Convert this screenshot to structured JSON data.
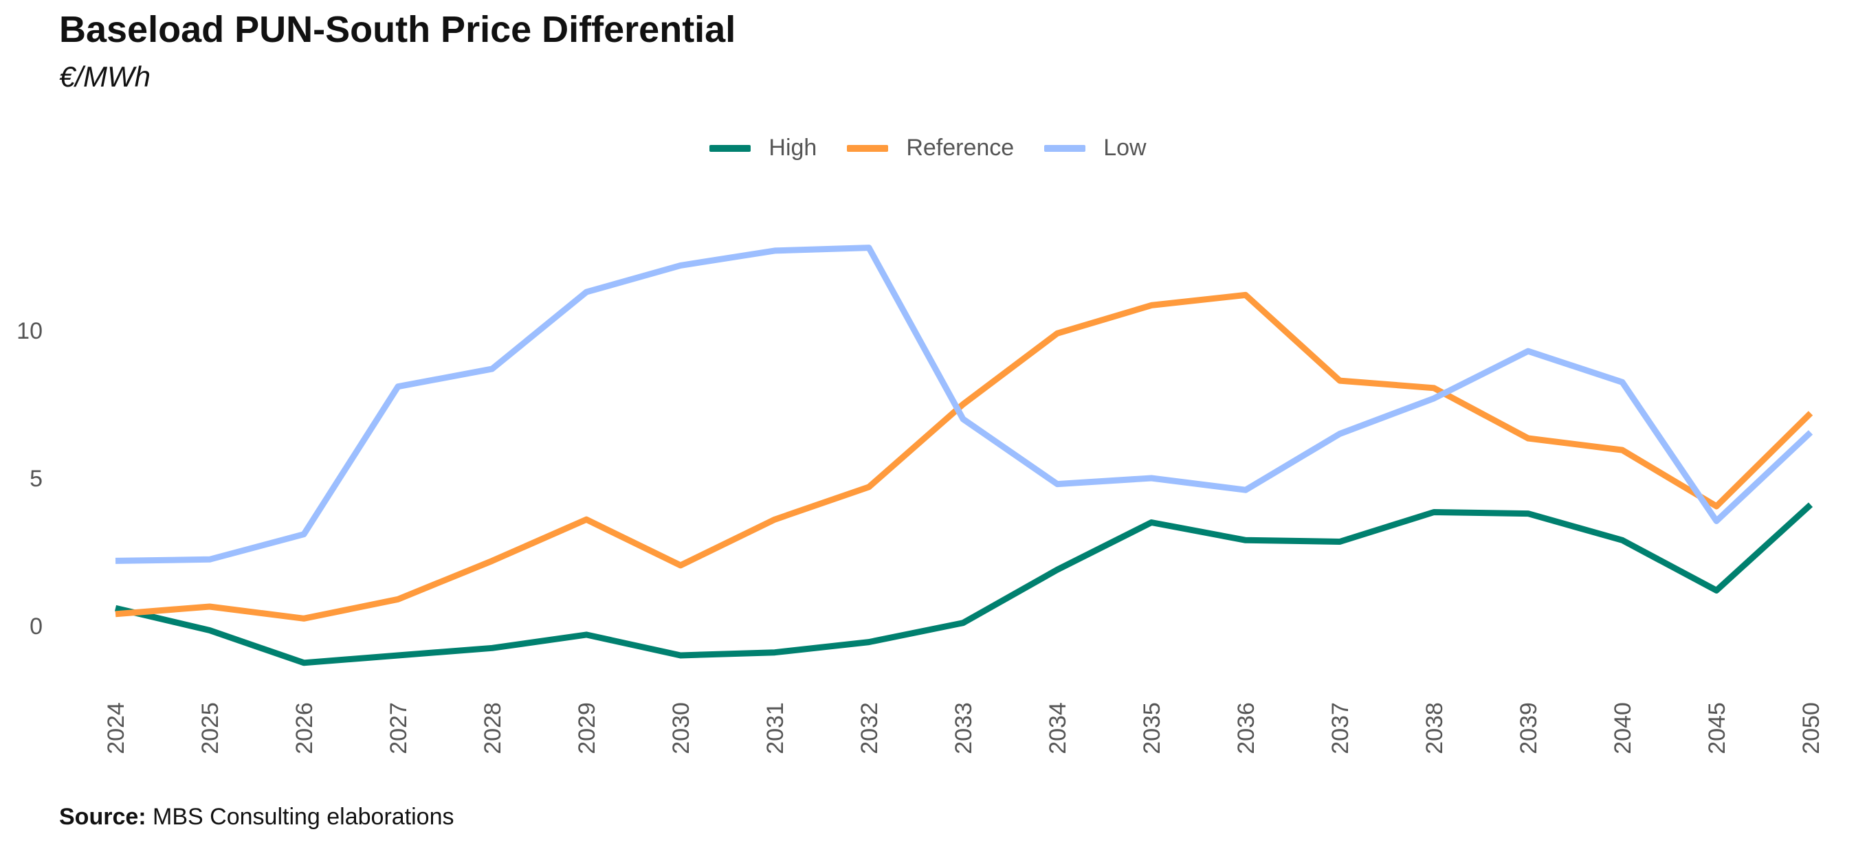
{
  "title": "Baseload PUN-South Price Differential",
  "subtitle": "€/MWh",
  "source": {
    "label": "Source:",
    "text": " MBS Consulting elaborations"
  },
  "chart_data": {
    "type": "line",
    "title": "Baseload PUN-South Price Differential",
    "subtitle": "€/MWh",
    "xlabel": "",
    "ylabel": "€/MWh",
    "categories": [
      "2024",
      "2025",
      "2026",
      "2027",
      "2028",
      "2029",
      "2030",
      "2031",
      "2032",
      "2033",
      "2034",
      "2035",
      "2036",
      "2037",
      "2038",
      "2039",
      "2040",
      "2045",
      "2050"
    ],
    "y_ticks": [
      0,
      5,
      10
    ],
    "ylim": [
      -2.4,
      14
    ],
    "grid": false,
    "legend_position": "top-center",
    "series": [
      {
        "name": "High",
        "color": "#00806F",
        "values": [
          0.6,
          -0.15,
          -1.25,
          -1.0,
          -0.75,
          -0.3,
          -1.0,
          -0.9,
          -0.55,
          0.1,
          1.9,
          3.5,
          2.9,
          2.85,
          3.85,
          3.8,
          2.9,
          1.2,
          4.1
        ]
      },
      {
        "name": "Reference",
        "color": "#FF9A3C",
        "values": [
          0.4,
          0.65,
          0.25,
          0.9,
          2.2,
          3.6,
          2.05,
          3.6,
          4.7,
          7.5,
          9.9,
          10.85,
          11.2,
          8.3,
          8.05,
          6.35,
          5.95,
          4.05,
          7.2
        ]
      },
      {
        "name": "Low",
        "color": "#9CBEFF",
        "values": [
          2.2,
          2.25,
          3.1,
          8.1,
          8.7,
          11.3,
          12.2,
          12.7,
          12.8,
          7.0,
          4.8,
          5.0,
          4.6,
          6.5,
          7.7,
          9.3,
          8.25,
          3.55,
          6.55
        ]
      }
    ]
  }
}
